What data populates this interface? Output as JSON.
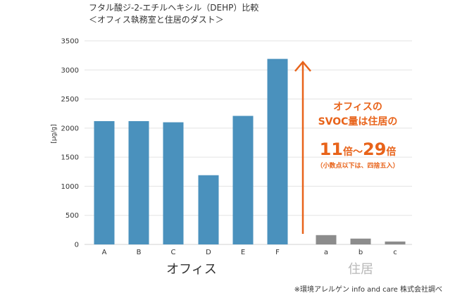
{
  "chart_data": {
    "type": "bar",
    "title": "フタル酸ジ-2-エチルヘキシル（DEHP）比較",
    "subtitle": "＜オフィス執務室と住居のダスト＞",
    "ylabel": "[μg/g]",
    "ylim": [
      0,
      3500
    ],
    "yticks": [
      0,
      500,
      1000,
      1500,
      2000,
      2500,
      3000,
      3500
    ],
    "ytick_labels": [
      "0",
      "500",
      "1000",
      "1500",
      "2000",
      "2500",
      "3000",
      "3500"
    ],
    "grid": true,
    "categories": [
      "A",
      "B",
      "C",
      "D",
      "E",
      "F",
      "a",
      "b",
      "c"
    ],
    "series": [
      {
        "values": [
          2120,
          2120,
          2100,
          1190,
          2210,
          3190,
          160,
          100,
          50
        ]
      }
    ],
    "groups": [
      {
        "name": "オフィス",
        "categories": [
          "A",
          "B",
          "C",
          "D",
          "E",
          "F"
        ],
        "color": "#4a91bd"
      },
      {
        "name": "住居",
        "categories": [
          "a",
          "b",
          "c"
        ],
        "color": "#8c8c8c"
      }
    ],
    "annotation": {
      "line1": "オフィスの",
      "line2": "SVOC量は住居の",
      "num1": "11",
      "mid": "倍～",
      "num2": "29",
      "unit": "倍",
      "note": "（小数点以下は、四捨五入）",
      "color": "#e8631a"
    },
    "source": "※環境アレルゲン info and care 株式会社調べ"
  },
  "colors": {
    "office_bar": "#4a91bd",
    "home_bar": "#8c8c8c",
    "office_label": "#333333",
    "home_label": "#b8b8b8",
    "grid": "#e3e3e3",
    "accent": "#e8631a"
  }
}
